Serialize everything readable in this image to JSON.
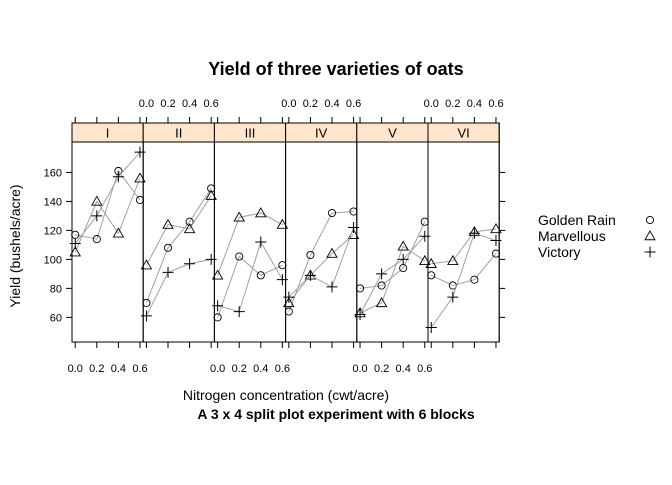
{
  "chart_data": {
    "type": "line",
    "title": "Yield of three varieties of oats",
    "subtitle": "A 3 x 4 split plot experiment with 6 blocks",
    "xlabel": "Nitrogen concentration (cwt/acre)",
    "ylabel": "Yield (bushels/acre)",
    "x": [
      0.0,
      0.2,
      0.4,
      0.6
    ],
    "x_tick_labels": [
      "0.0",
      "0.2",
      "0.4",
      "0.6"
    ],
    "y_ticks": [
      60,
      80,
      100,
      120,
      140,
      160
    ],
    "y_tick_labels": [
      "60",
      "80",
      "100",
      "120",
      "140",
      "160"
    ],
    "xlim": [
      -0.03,
      0.63
    ],
    "ylim": [
      43,
      181
    ],
    "panels": [
      "I",
      "II",
      "III",
      "IV",
      "V",
      "VI"
    ],
    "legend_position": "right",
    "colors": {
      "strip": "#ffe5cc",
      "line": "#a0a0a0",
      "marker": "#000000"
    },
    "series": [
      {
        "name": "Golden Rain",
        "marker": "circle",
        "values": [
          [
            117,
            114,
            161,
            141
          ],
          [
            70,
            108,
            126,
            149
          ],
          [
            60,
            102,
            89,
            96
          ],
          [
            64,
            103,
            132,
            133
          ],
          [
            80,
            82,
            94,
            126
          ],
          [
            89,
            82,
            86,
            104
          ]
        ]
      },
      {
        "name": "Marvellous",
        "marker": "triangle",
        "values": [
          [
            105,
            140,
            118,
            156
          ],
          [
            96,
            124,
            121,
            144
          ],
          [
            89,
            129,
            132,
            124
          ],
          [
            70,
            89,
            104,
            117
          ],
          [
            63,
            70,
            109,
            99
          ],
          [
            97,
            99,
            119,
            121
          ]
        ]
      },
      {
        "name": "Victory",
        "marker": "plus",
        "values": [
          [
            111,
            130,
            157,
            174
          ],
          [
            61,
            91,
            97,
            100
          ],
          [
            68,
            64,
            112,
            86
          ],
          [
            74,
            89,
            81,
            122
          ],
          [
            62,
            90,
            100,
            116
          ],
          [
            53,
            74,
            118,
            113
          ]
        ]
      }
    ]
  }
}
